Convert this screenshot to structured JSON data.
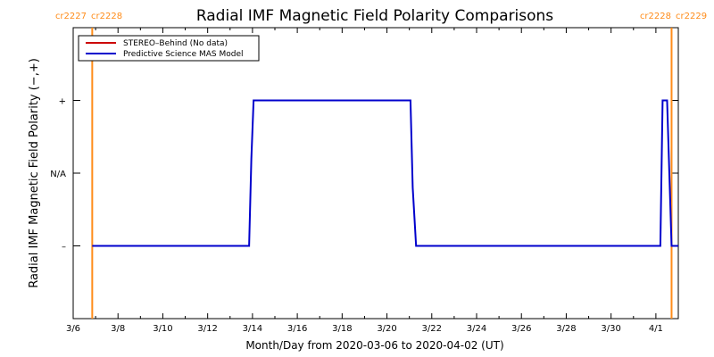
{
  "chart_data": {
    "type": "line",
    "title": "Radial IMF Magnetic Field Polarity Comparisons",
    "xlabel": "Month/Day from 2020-03-06 to 2020-04-02 (UT)",
    "ylabel": "Radial IMF Magnetic Field Polarity (−,+)",
    "x_axis": {
      "range_days": [
        0,
        27
      ],
      "ticks": [
        {
          "day": 0,
          "label": "3/6"
        },
        {
          "day": 2,
          "label": "3/8"
        },
        {
          "day": 4,
          "label": "3/10"
        },
        {
          "day": 6,
          "label": "3/12"
        },
        {
          "day": 8,
          "label": "3/14"
        },
        {
          "day": 10,
          "label": "3/16"
        },
        {
          "day": 12,
          "label": "3/18"
        },
        {
          "day": 14,
          "label": "3/20"
        },
        {
          "day": 16,
          "label": "3/22"
        },
        {
          "day": 18,
          "label": "3/24"
        },
        {
          "day": 20,
          "label": "3/26"
        },
        {
          "day": 22,
          "label": "3/28"
        },
        {
          "day": 24,
          "label": "3/30"
        },
        {
          "day": 26,
          "label": "4/1"
        }
      ]
    },
    "y_axis": {
      "range": [
        -2,
        2
      ],
      "ticks": [
        {
          "value": 1,
          "label": "+"
        },
        {
          "value": 0,
          "label": "N/A"
        },
        {
          "value": -1,
          "label": "–"
        }
      ]
    },
    "legend": {
      "position": "top-left",
      "entries": [
        {
          "label": "STEREO–Behind (No data)",
          "color": "#cc0000"
        },
        {
          "label": "Predictive Science MAS Model",
          "color": "#0000cc"
        }
      ]
    },
    "carrington_markers": [
      {
        "day": 0.85,
        "left_label": "cr2227",
        "right_label": "cr2228",
        "color": "#ff8c1a"
      },
      {
        "day": 26.7,
        "left_label": "cr2228",
        "right_label": "cr2229",
        "color": "#ff8c1a"
      }
    ],
    "series": [
      {
        "name": "Predictive Science MAS Model",
        "color": "#0000cc",
        "points": [
          [
            0.85,
            -1
          ],
          [
            7.85,
            -1
          ],
          [
            7.95,
            0.2
          ],
          [
            8.05,
            1
          ],
          [
            15.05,
            1
          ],
          [
            15.15,
            -0.2
          ],
          [
            15.3,
            -1
          ],
          [
            26.2,
            -1
          ],
          [
            26.3,
            1
          ],
          [
            26.5,
            1
          ],
          [
            26.6,
            0
          ],
          [
            26.7,
            -1
          ],
          [
            27,
            -1
          ]
        ]
      },
      {
        "name": "STEREO–Behind (No data)",
        "color": "#cc0000",
        "points": []
      }
    ]
  }
}
